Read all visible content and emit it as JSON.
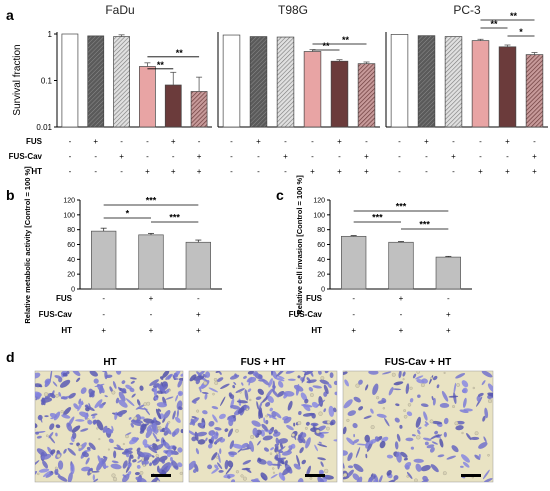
{
  "panel_labels": [
    "a",
    "b",
    "c",
    "d"
  ],
  "colors": {
    "white": "#ffffff",
    "gray_dark": "#8c8c8c",
    "gray_hatch": "#b3b3b3",
    "pink": "#e8a4a4",
    "dark_brown": "#6b3b3b",
    "brown_hatch": "#8a4a4a",
    "bar_gray": "#c0c0c0",
    "micro_bg": "#e9e3c3",
    "cell_purple": "#5a5aa6"
  },
  "treatment_labels": {
    "fus": "FUS",
    "fus_cav": "FUS-Cav",
    "ht": "HT"
  },
  "chart_data": [
    {
      "type": "bar",
      "panel": "a",
      "title": "FaDu",
      "ylabel": "Survival fraction",
      "y_scale": "log",
      "ylim": [
        0.01,
        1
      ],
      "yticks": [
        "1",
        "0.1",
        "0.01"
      ],
      "values": [
        1.0,
        0.91,
        0.88,
        0.2,
        0.08,
        0.058
      ],
      "errors": [
        0,
        0,
        0.08,
        0.04,
        0.07,
        0.06
      ],
      "treatments": {
        "FUS": [
          "-",
          "+",
          "-",
          "-",
          "+",
          "-"
        ],
        "FUS-Cav": [
          "-",
          "-",
          "+",
          "-",
          "-",
          "+"
        ],
        "HT": [
          "-",
          "-",
          "-",
          "+",
          "+",
          "+"
        ]
      },
      "significance": [
        "**",
        "**"
      ]
    },
    {
      "type": "bar",
      "panel": "a",
      "title": "T98G",
      "y_scale": "log",
      "ylim": [
        0.01,
        1
      ],
      "values": [
        0.95,
        0.88,
        0.86,
        0.42,
        0.26,
        0.23
      ],
      "errors": [
        0,
        0,
        0,
        0.04,
        0.02,
        0.02
      ],
      "treatments": {
        "FUS": [
          "-",
          "+",
          "-",
          "-",
          "+",
          "-"
        ],
        "FUS-Cav": [
          "-",
          "-",
          "+",
          "-",
          "-",
          "+"
        ],
        "HT": [
          "-",
          "-",
          "-",
          "+",
          "+",
          "+"
        ]
      },
      "significance": [
        "**",
        "**"
      ]
    },
    {
      "type": "bar",
      "panel": "a",
      "title": "PC-3",
      "y_scale": "log",
      "ylim": [
        0.01,
        1
      ],
      "values": [
        0.98,
        0.92,
        0.88,
        0.72,
        0.53,
        0.36
      ],
      "errors": [
        0,
        0,
        0,
        0.05,
        0.05,
        0.04
      ],
      "treatments": {
        "FUS": [
          "-",
          "+",
          "-",
          "-",
          "+",
          "-"
        ],
        "FUS-Cav": [
          "-",
          "-",
          "+",
          "-",
          "-",
          "+"
        ],
        "HT": [
          "-",
          "-",
          "-",
          "+",
          "+",
          "+"
        ]
      },
      "significance": [
        "**",
        "**",
        "*"
      ]
    },
    {
      "type": "bar",
      "panel": "b",
      "ylabel": "Relative metabolic activity [Control = 100 %]",
      "ylim": [
        0,
        120
      ],
      "yticks": [
        0,
        20,
        40,
        60,
        80,
        100,
        120
      ],
      "values": [
        78,
        73,
        63
      ],
      "errors": [
        4,
        2,
        3
      ],
      "treatments": {
        "FUS": [
          "-",
          "+",
          "-"
        ],
        "FUS-Cav": [
          "-",
          "-",
          "+"
        ],
        "HT": [
          "+",
          "+",
          "+"
        ]
      },
      "significance": [
        "***",
        "*",
        "***"
      ]
    },
    {
      "type": "bar",
      "panel": "c",
      "ylabel": "Relative cell invasion [Control = 100 %]",
      "ylim": [
        0,
        120
      ],
      "yticks": [
        0,
        20,
        40,
        60,
        80,
        100,
        120
      ],
      "values": [
        71,
        63,
        43
      ],
      "errors": [
        1,
        1,
        1
      ],
      "treatments": {
        "FUS": [
          "-",
          "+",
          "-"
        ],
        "FUS-Cav": [
          "-",
          "-",
          "+"
        ],
        "HT": [
          "+",
          "+",
          "+"
        ]
      },
      "significance": [
        "***",
        "***",
        "***"
      ]
    }
  ],
  "micrographs": {
    "titles": [
      "HT",
      "FUS + HT",
      "FUS-Cav + HT"
    ],
    "densities": [
      0.9,
      0.8,
      0.45
    ]
  }
}
